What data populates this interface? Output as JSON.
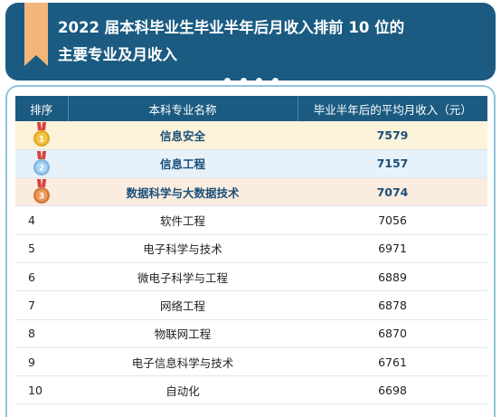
{
  "header": {
    "title_line1": "2022 届本科毕业生毕业半年后月收入排前 10 位的",
    "title_line2": "主要专业及月收入"
  },
  "colors": {
    "header_bg": "#1b5b82",
    "bookmark": "#f2b57a",
    "gold_row": "#fcf3db",
    "silver_row": "#e6f1fa",
    "bronze_row": "#fbece0",
    "top_text": "#1b4f78"
  },
  "icons": [
    "bookmark-icon",
    "gold-medal-icon",
    "silver-medal-icon",
    "bronze-medal-icon"
  ],
  "table": {
    "columns": [
      "排序",
      "本科专业名称",
      "毕业半年后的平均月收入（元）"
    ]
  },
  "chart_data": {
    "type": "table",
    "title": "2022 届本科毕业生毕业半年后月收入排前 10 位的主要专业及月收入",
    "columns": [
      "排序",
      "本科专业名称",
      "毕业半年后的平均月收入（元）"
    ],
    "rows": [
      {
        "rank": "1",
        "major": "信息安全",
        "income": "7579",
        "medal": "gold"
      },
      {
        "rank": "2",
        "major": "信息工程",
        "income": "7157",
        "medal": "silver"
      },
      {
        "rank": "3",
        "major": "数据科学与大数据技术",
        "income": "7074",
        "medal": "bronze"
      },
      {
        "rank": "4",
        "major": "软件工程",
        "income": "7056"
      },
      {
        "rank": "5",
        "major": "电子科学与技术",
        "income": "6971"
      },
      {
        "rank": "6",
        "major": "微电子科学与工程",
        "income": "6889"
      },
      {
        "rank": "7",
        "major": "网络工程",
        "income": "6878"
      },
      {
        "rank": "8",
        "major": "物联网工程",
        "income": "6870"
      },
      {
        "rank": "9",
        "major": "电子信息科学与技术",
        "income": "6761"
      },
      {
        "rank": "10",
        "major": "自动化",
        "income": "6698"
      }
    ]
  }
}
